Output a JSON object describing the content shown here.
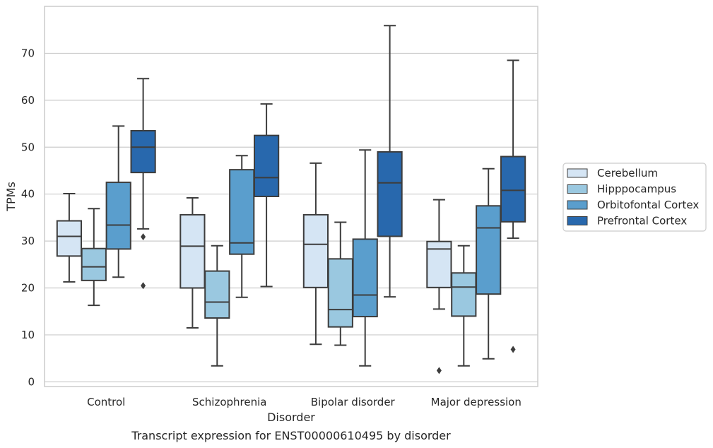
{
  "caption": "Transcript expression for ENST00000610495 by disorder",
  "chart_data": {
    "type": "box",
    "xlabel": "Disorder",
    "ylabel": "TPMs",
    "categories": [
      "Control",
      "Schizophrenia",
      "Bipolar disorder",
      "Major depression"
    ],
    "ylim": [
      -1,
      80
    ],
    "yticks": [
      0,
      10,
      20,
      30,
      40,
      50,
      60,
      70
    ],
    "grid": "horizontal",
    "legend_position": "right",
    "series": [
      {
        "name": "Cerebellum",
        "color": "#d5e5f4",
        "boxes": [
          {
            "min": 21.3,
            "q1": 26.8,
            "median": 31.0,
            "q3": 34.3,
            "max": 40.1,
            "outliers": []
          },
          {
            "min": 11.5,
            "q1": 20.0,
            "median": 28.9,
            "q3": 35.6,
            "max": 39.2,
            "outliers": []
          },
          {
            "min": 8.0,
            "q1": 20.1,
            "median": 29.3,
            "q3": 35.6,
            "max": 46.6,
            "outliers": []
          },
          {
            "min": 15.5,
            "q1": 20.1,
            "median": 28.3,
            "q3": 29.9,
            "max": 38.8,
            "outliers": [
              2.4
            ]
          }
        ]
      },
      {
        "name": "Hipppocampus",
        "color": "#9ac8e0",
        "boxes": [
          {
            "min": 16.3,
            "q1": 21.6,
            "median": 24.5,
            "q3": 28.4,
            "max": 36.9,
            "outliers": []
          },
          {
            "min": 3.4,
            "q1": 13.6,
            "median": 17.0,
            "q3": 23.6,
            "max": 29.0,
            "outliers": []
          },
          {
            "min": 7.8,
            "q1": 11.7,
            "median": 15.4,
            "q3": 26.2,
            "max": 34.0,
            "outliers": []
          },
          {
            "min": 3.4,
            "q1": 14.0,
            "median": 20.2,
            "q3": 23.2,
            "max": 29.0,
            "outliers": []
          }
        ]
      },
      {
        "name": "Orbitofontal Cortex",
        "color": "#5a9ecd",
        "boxes": [
          {
            "min": 22.3,
            "q1": 28.3,
            "median": 33.4,
            "q3": 42.5,
            "max": 54.5,
            "outliers": []
          },
          {
            "min": 18.0,
            "q1": 27.2,
            "median": 29.6,
            "q3": 45.2,
            "max": 48.2,
            "outliers": []
          },
          {
            "min": 3.4,
            "q1": 13.9,
            "median": 18.5,
            "q3": 30.4,
            "max": 49.4,
            "outliers": []
          },
          {
            "min": 4.9,
            "q1": 18.7,
            "median": 32.8,
            "q3": 37.5,
            "max": 45.4,
            "outliers": []
          }
        ]
      },
      {
        "name": "Prefrontal Cortex",
        "color": "#2868ad",
        "boxes": [
          {
            "min": 32.6,
            "q1": 44.6,
            "median": 50.0,
            "q3": 53.5,
            "max": 64.6,
            "outliers": [
              30.9,
              20.5
            ]
          },
          {
            "min": 20.3,
            "q1": 39.5,
            "median": 43.5,
            "q3": 52.5,
            "max": 59.2,
            "outliers": []
          },
          {
            "min": 18.1,
            "q1": 31.0,
            "median": 42.4,
            "q3": 49.0,
            "max": 75.9,
            "outliers": []
          },
          {
            "min": 30.6,
            "q1": 34.1,
            "median": 40.8,
            "q3": 48.0,
            "max": 68.5,
            "outliers": [
              6.9
            ]
          }
        ]
      }
    ]
  }
}
